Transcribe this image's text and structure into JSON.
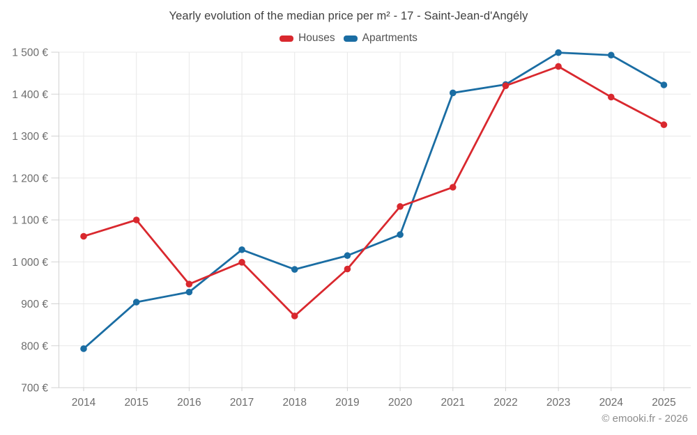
{
  "title": "Yearly evolution of the median price per m² - 17 - Saint-Jean-d'Angély",
  "footer": "© emooki.fr - 2026",
  "colors": {
    "houses": "#d9282e",
    "apartments": "#1a6da3",
    "grid": "#e8e8e8",
    "axis": "#d2d2d2",
    "tick_text": "#6d6d6d"
  },
  "chart_data": {
    "type": "line",
    "title": "Yearly evolution of the median price per m² - 17 - Saint-Jean-d'Angély",
    "x": [
      "2014",
      "2015",
      "2016",
      "2017",
      "2018",
      "2019",
      "2020",
      "2021",
      "2022",
      "2023",
      "2024",
      "2025"
    ],
    "series": [
      {
        "name": "Houses",
        "color": "#d9282e",
        "values": [
          1061,
          1100,
          947,
          999,
          871,
          983,
          1132,
          1178,
          1420,
          1466,
          1393,
          1327
        ]
      },
      {
        "name": "Apartments",
        "color": "#1a6da3",
        "values": [
          793,
          904,
          928,
          1029,
          982,
          1015,
          1065,
          1403,
          1423,
          1499,
          1493,
          1422
        ]
      }
    ],
    "xlabel": "",
    "ylabel": "",
    "ylim": [
      700,
      1500
    ],
    "yticks": [
      {
        "value": 700,
        "label": "700 €"
      },
      {
        "value": 800,
        "label": "800 €"
      },
      {
        "value": 900,
        "label": "900 €"
      },
      {
        "value": 1000,
        "label": "1 000 €"
      },
      {
        "value": 1100,
        "label": "1 100 €"
      },
      {
        "value": 1200,
        "label": "1 200 €"
      },
      {
        "value": 1300,
        "label": "1 300 €"
      },
      {
        "value": 1400,
        "label": "1 400 €"
      },
      {
        "value": 1500,
        "label": "1 500 €"
      }
    ],
    "grid": true,
    "legend_position": "top"
  }
}
